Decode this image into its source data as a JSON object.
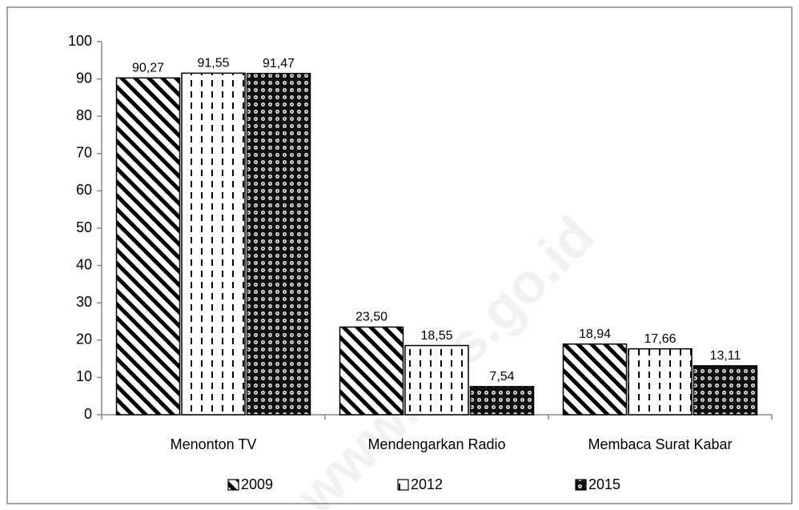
{
  "chart_data": {
    "type": "bar",
    "categories": [
      "Menonton TV",
      "Mendengarkan Radio",
      "Membaca Surat Kabar"
    ],
    "series": [
      {
        "name": "2009",
        "values": [
          90.27,
          23.5,
          18.94
        ],
        "value_labels": [
          "90,27",
          "23,50",
          "18,94"
        ]
      },
      {
        "name": "2012",
        "values": [
          91.55,
          18.55,
          17.66
        ],
        "value_labels": [
          "91,55",
          "18,55",
          "17,66"
        ]
      },
      {
        "name": "2015",
        "values": [
          91.47,
          7.54,
          13.11
        ],
        "value_labels": [
          "91,47",
          "7,54",
          "13,11"
        ]
      }
    ],
    "ylim": [
      0,
      100
    ],
    "yticks": [
      0,
      10,
      20,
      30,
      40,
      50,
      60,
      70,
      80,
      90,
      100
    ],
    "grid": false,
    "legend": "bottom",
    "watermark": "www.bps.go.id"
  }
}
